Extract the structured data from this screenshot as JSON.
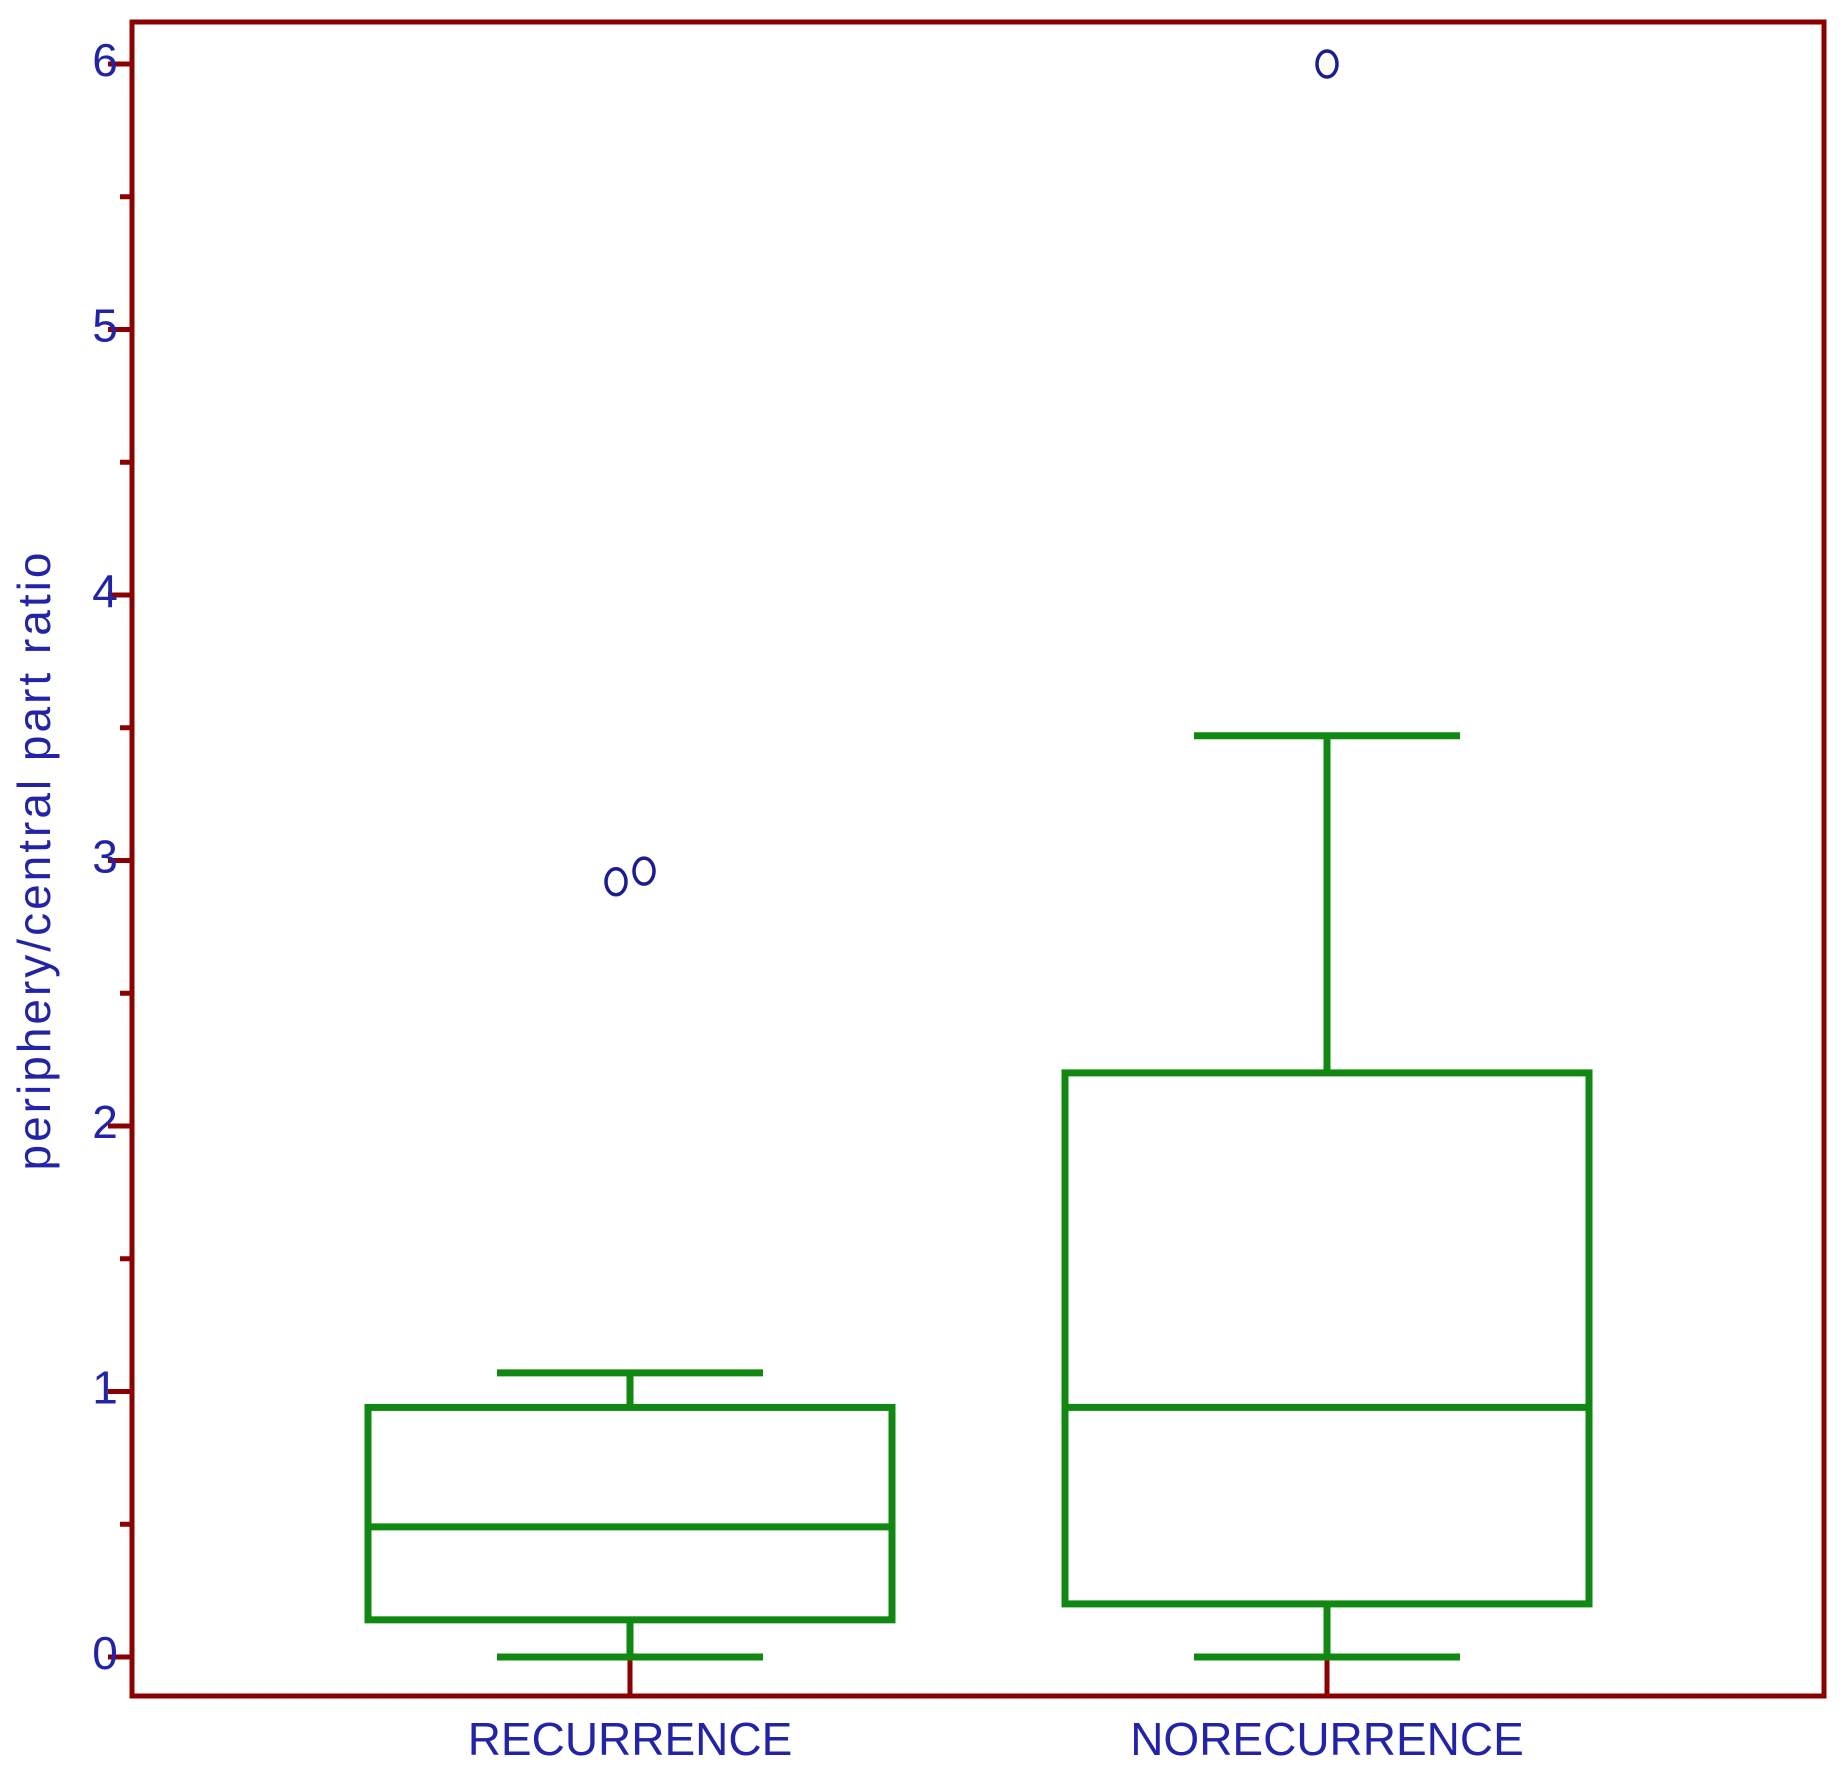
{
  "chart_data": {
    "type": "box",
    "title": "",
    "xlabel": "",
    "ylabel": "periphery/central part ratio",
    "ylim": [
      -0.15,
      6.2
    ],
    "yticks": [
      0,
      1,
      2,
      3,
      4,
      5,
      6
    ],
    "ytick_labels": [
      "0",
      "1",
      "2",
      "3",
      "4",
      "5",
      "6"
    ],
    "grid": false,
    "categories": [
      "RECURRENCE",
      "NORECURRENCE"
    ],
    "boxes": [
      {
        "category": "RECURRENCE",
        "whisker_low": 0.0,
        "q1": 0.14,
        "median": 0.49,
        "q3": 0.94,
        "whisker_high": 1.07,
        "outliers": [
          2.92,
          2.96
        ]
      },
      {
        "category": "NORECURRENCE",
        "whisker_low": 0.0,
        "q1": 0.2,
        "median": 0.94,
        "q3": 2.2,
        "whisker_high": 3.47,
        "outliers": [
          6.0
        ]
      }
    ],
    "colors": {
      "frame": "#8b0000",
      "box": "#118811",
      "text": "#2323a8",
      "outlier": "#1c1c8e"
    }
  }
}
